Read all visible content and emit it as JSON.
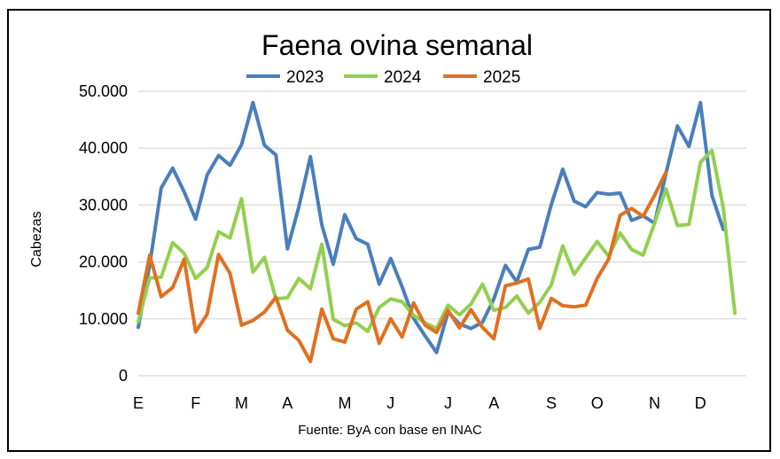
{
  "chart_data": {
    "type": "line",
    "title": "Faena ovina semanal",
    "ylabel": "Cabezas",
    "xlabel": "",
    "source": "Fuente: ByA con base en INAC",
    "ylim": [
      0,
      50000
    ],
    "y_ticks": [
      0,
      10000,
      20000,
      30000,
      40000,
      50000
    ],
    "y_tick_labels": [
      "0",
      "10.000",
      "20.000",
      "30.000",
      "40.000",
      "50.000"
    ],
    "x_ticks": [
      {
        "label": "E",
        "week": 1
      },
      {
        "label": "F",
        "week": 6
      },
      {
        "label": "M",
        "week": 10
      },
      {
        "label": "A",
        "week": 14
      },
      {
        "label": "M",
        "week": 19
      },
      {
        "label": "J",
        "week": 23
      },
      {
        "label": "J",
        "week": 28
      },
      {
        "label": "A",
        "week": 32
      },
      {
        "label": "S",
        "week": 37
      },
      {
        "label": "O",
        "week": 41
      },
      {
        "label": "N",
        "week": 46
      },
      {
        "label": "D",
        "week": 50
      }
    ],
    "week_range": [
      1,
      54
    ],
    "grid": true,
    "legend_position": "top",
    "series": [
      {
        "name": "2023",
        "color": "#4a7ebb",
        "x": [
          1,
          2,
          3,
          4,
          5,
          6,
          7,
          8,
          9,
          10,
          11,
          12,
          13,
          14,
          15,
          16,
          17,
          18,
          19,
          20,
          21,
          22,
          23,
          24,
          25,
          26,
          27,
          28,
          29,
          30,
          31,
          32,
          33,
          34,
          35,
          36,
          37,
          38,
          39,
          40,
          41,
          42,
          43,
          44,
          45,
          46,
          47,
          48,
          49,
          50,
          51,
          52
        ],
        "values": [
          8500,
          19500,
          33000,
          36500,
          32300,
          27500,
          35300,
          38700,
          37000,
          40600,
          48000,
          40500,
          38800,
          22300,
          29700,
          38500,
          26500,
          19600,
          28300,
          24100,
          23100,
          16100,
          20600,
          15600,
          10100,
          7000,
          4100,
          11200,
          9100,
          8300,
          9400,
          13500,
          19400,
          16500,
          22200,
          22600,
          30100,
          36300,
          30700,
          29700,
          32200,
          31900,
          32100,
          27300,
          28100,
          26800,
          35600,
          43900,
          40300,
          48000,
          31700,
          25700
        ]
      },
      {
        "name": "2024",
        "color": "#92d050",
        "x": [
          1,
          2,
          3,
          4,
          5,
          6,
          7,
          8,
          9,
          10,
          11,
          12,
          13,
          14,
          15,
          16,
          17,
          18,
          19,
          20,
          21,
          22,
          23,
          24,
          25,
          26,
          27,
          28,
          29,
          30,
          31,
          32,
          33,
          34,
          35,
          36,
          37,
          38,
          39,
          40,
          41,
          42,
          43,
          44,
          45,
          46,
          47,
          48,
          49,
          50,
          51,
          52,
          53
        ],
        "values": [
          9500,
          17200,
          17300,
          23400,
          21500,
          17100,
          19000,
          25300,
          24200,
          31100,
          18200,
          20800,
          13500,
          13700,
          17100,
          15300,
          23100,
          9900,
          8800,
          9300,
          7800,
          12000,
          13500,
          13000,
          10600,
          9300,
          8300,
          12400,
          10700,
          12600,
          16100,
          11500,
          12000,
          14000,
          11000,
          12900,
          16000,
          22800,
          17800,
          20700,
          23600,
          21000,
          25100,
          22200,
          21200,
          26800,
          32800,
          26400,
          26600,
          37500,
          39600,
          29400,
          11000
        ]
      },
      {
        "name": "2025",
        "color": "#e07020",
        "x": [
          1,
          2,
          3,
          4,
          5,
          6,
          7,
          8,
          9,
          10,
          11,
          12,
          13,
          14,
          15,
          16,
          17,
          18,
          19,
          20,
          21,
          22,
          23,
          24,
          25,
          26,
          27,
          28,
          29,
          30,
          31,
          32,
          33,
          34,
          35,
          36,
          37,
          38,
          39,
          40,
          41,
          42,
          43,
          44,
          45,
          46,
          47
        ],
        "values": [
          11000,
          21200,
          13900,
          15500,
          20500,
          7700,
          10800,
          21300,
          18000,
          8900,
          9700,
          11200,
          13800,
          8000,
          6200,
          2500,
          11700,
          6500,
          5900,
          11700,
          13000,
          5700,
          10000,
          6800,
          12800,
          8900,
          7600,
          11500,
          8400,
          11600,
          8500,
          6500,
          15800,
          16300,
          17000,
          8300,
          13600,
          12300,
          12100,
          12400,
          17100,
          20500,
          28200,
          29400,
          28000,
          31700,
          35800
        ]
      }
    ]
  }
}
